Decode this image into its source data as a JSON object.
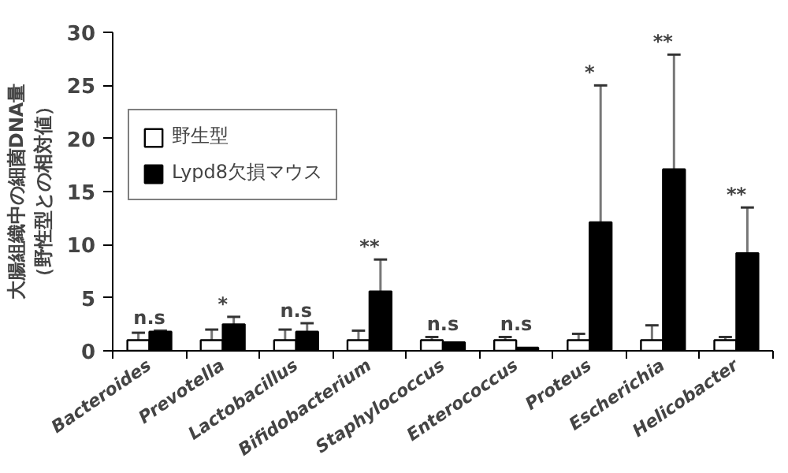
{
  "chart_data": {
    "type": "bar",
    "ylabel": "大腸組織中の細菌DNA量（野性型との相対値）",
    "categories": [
      "Bacteroides",
      "Prevotella",
      "Lactobacillus",
      "Bifidobacterium",
      "Staphylococcus",
      "Enterococcus",
      "Proteus",
      "Escherichia",
      "Helicobacter"
    ],
    "series": [
      {
        "name": "野生型",
        "color": "#ffffff",
        "values": [
          1,
          1,
          1,
          1,
          1,
          1,
          1,
          1,
          1
        ],
        "errors": [
          [
            1,
            1.7
          ],
          [
            1,
            2.0
          ],
          [
            1,
            2.0
          ],
          [
            1,
            1.9
          ],
          [
            1,
            1.3
          ],
          [
            1,
            1.3
          ],
          [
            1,
            1.6
          ],
          [
            1,
            2.4
          ],
          [
            1,
            1.3
          ]
        ]
      },
      {
        "name": "Lypd8欠損マウス",
        "color": "#000000",
        "values": [
          1.8,
          2.5,
          1.8,
          5.6,
          0.8,
          0.3,
          12.1,
          17.1,
          9.2
        ],
        "errors": [
          [
            1.8,
            1.9
          ],
          [
            2.5,
            3.2
          ],
          [
            1.8,
            2.6
          ],
          [
            5.6,
            8.6
          ],
          null,
          null,
          [
            12.1,
            25.0
          ],
          [
            17.1,
            27.9
          ],
          [
            9.2,
            13.5
          ]
        ]
      }
    ],
    "ylim": [
      0,
      30
    ],
    "yticks": [
      0,
      5,
      10,
      15,
      20,
      25,
      30
    ],
    "grid": false,
    "legend": "top left",
    "annotations": [
      "n.s",
      "*",
      "n.s",
      "**",
      "n.s",
      "n.s",
      "*",
      "**",
      "**"
    ]
  }
}
